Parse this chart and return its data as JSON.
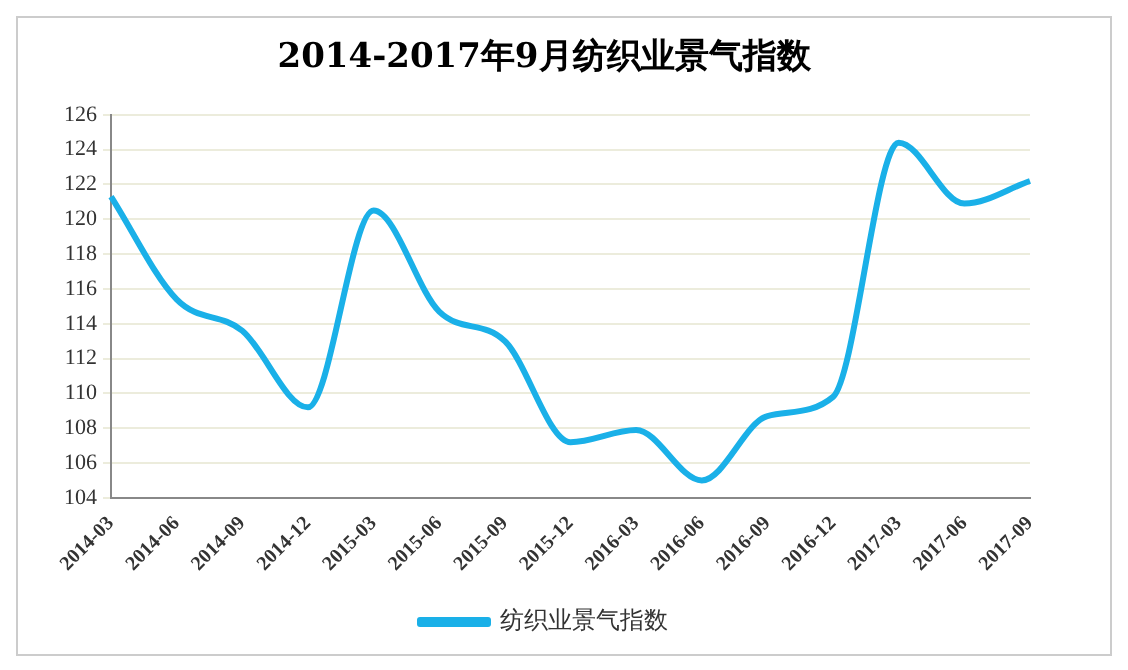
{
  "chart_data": {
    "type": "line",
    "title": "2014-2017年9月纺织业景气指数",
    "categories": [
      "2014-03",
      "2014-06",
      "2014-09",
      "2014-12",
      "2015-03",
      "2015-06",
      "2015-09",
      "2015-12",
      "2016-03",
      "2016-06",
      "2016-09",
      "2016-12",
      "2017-03",
      "2017-06",
      "2017-09"
    ],
    "series": [
      {
        "name": "纺织业景气指数",
        "color": "#1ab0e8",
        "values": [
          121.3,
          115.4,
          113.6,
          109.2,
          120.5,
          114.7,
          113,
          107.2,
          107.9,
          105,
          108.7,
          109.8,
          124.4,
          120.9,
          122.2
        ]
      }
    ],
    "ylim": [
      104,
      126
    ],
    "yticks": [
      104,
      106,
      108,
      110,
      112,
      114,
      116,
      118,
      120,
      122,
      124,
      126
    ],
    "grid": "y",
    "legend": "bottom",
    "marker": "none",
    "line_style": "solid"
  }
}
